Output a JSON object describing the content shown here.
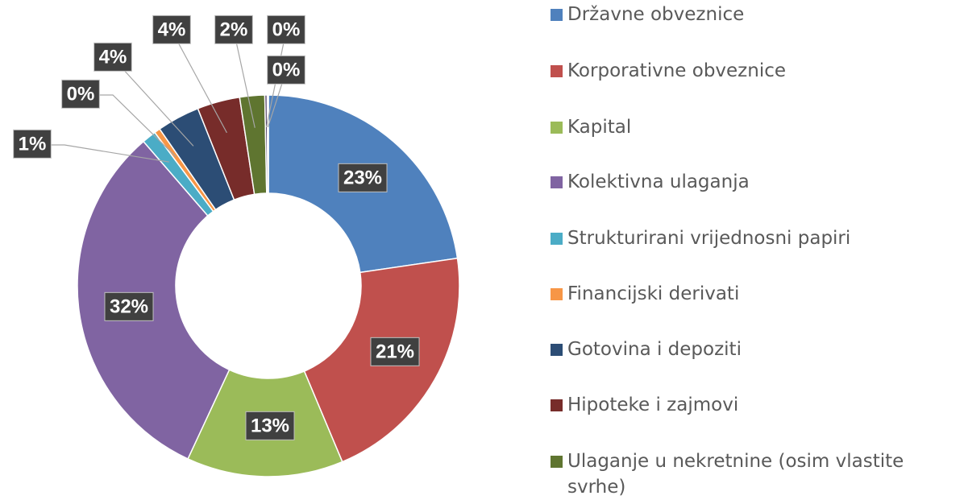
{
  "chart_data": {
    "type": "donut",
    "categories": [
      "Državne obveznice",
      "Korporativne obveznice",
      "Kapital",
      "Kolektivna ulaganja",
      "Strukturirani vrijednosni papiri",
      "Financijski derivati",
      "Gotovina i depoziti",
      "Hipoteke i zajmovi",
      "Ulaganje u nekretnine (osim vlastite svrhe)",
      null,
      null
    ],
    "values": [
      22.6,
      20.9,
      13.2,
      31.6,
      1.2,
      0.5,
      3.6,
      3.6,
      2.1,
      0.2,
      0.1
    ],
    "value_labels": [
      "23%",
      "21%",
      "13%",
      "32%",
      "1%",
      "0%",
      "4%",
      "4%",
      "2%",
      "0%",
      "0%"
    ],
    "colors": [
      "#4f81bd",
      "#c0504d",
      "#9bbb59",
      "#8064a2",
      "#4bacc6",
      "#f79646",
      "#2c4d75",
      "#772c2a",
      "#5f7530",
      "#4d3b62",
      "#276a7c"
    ]
  }
}
